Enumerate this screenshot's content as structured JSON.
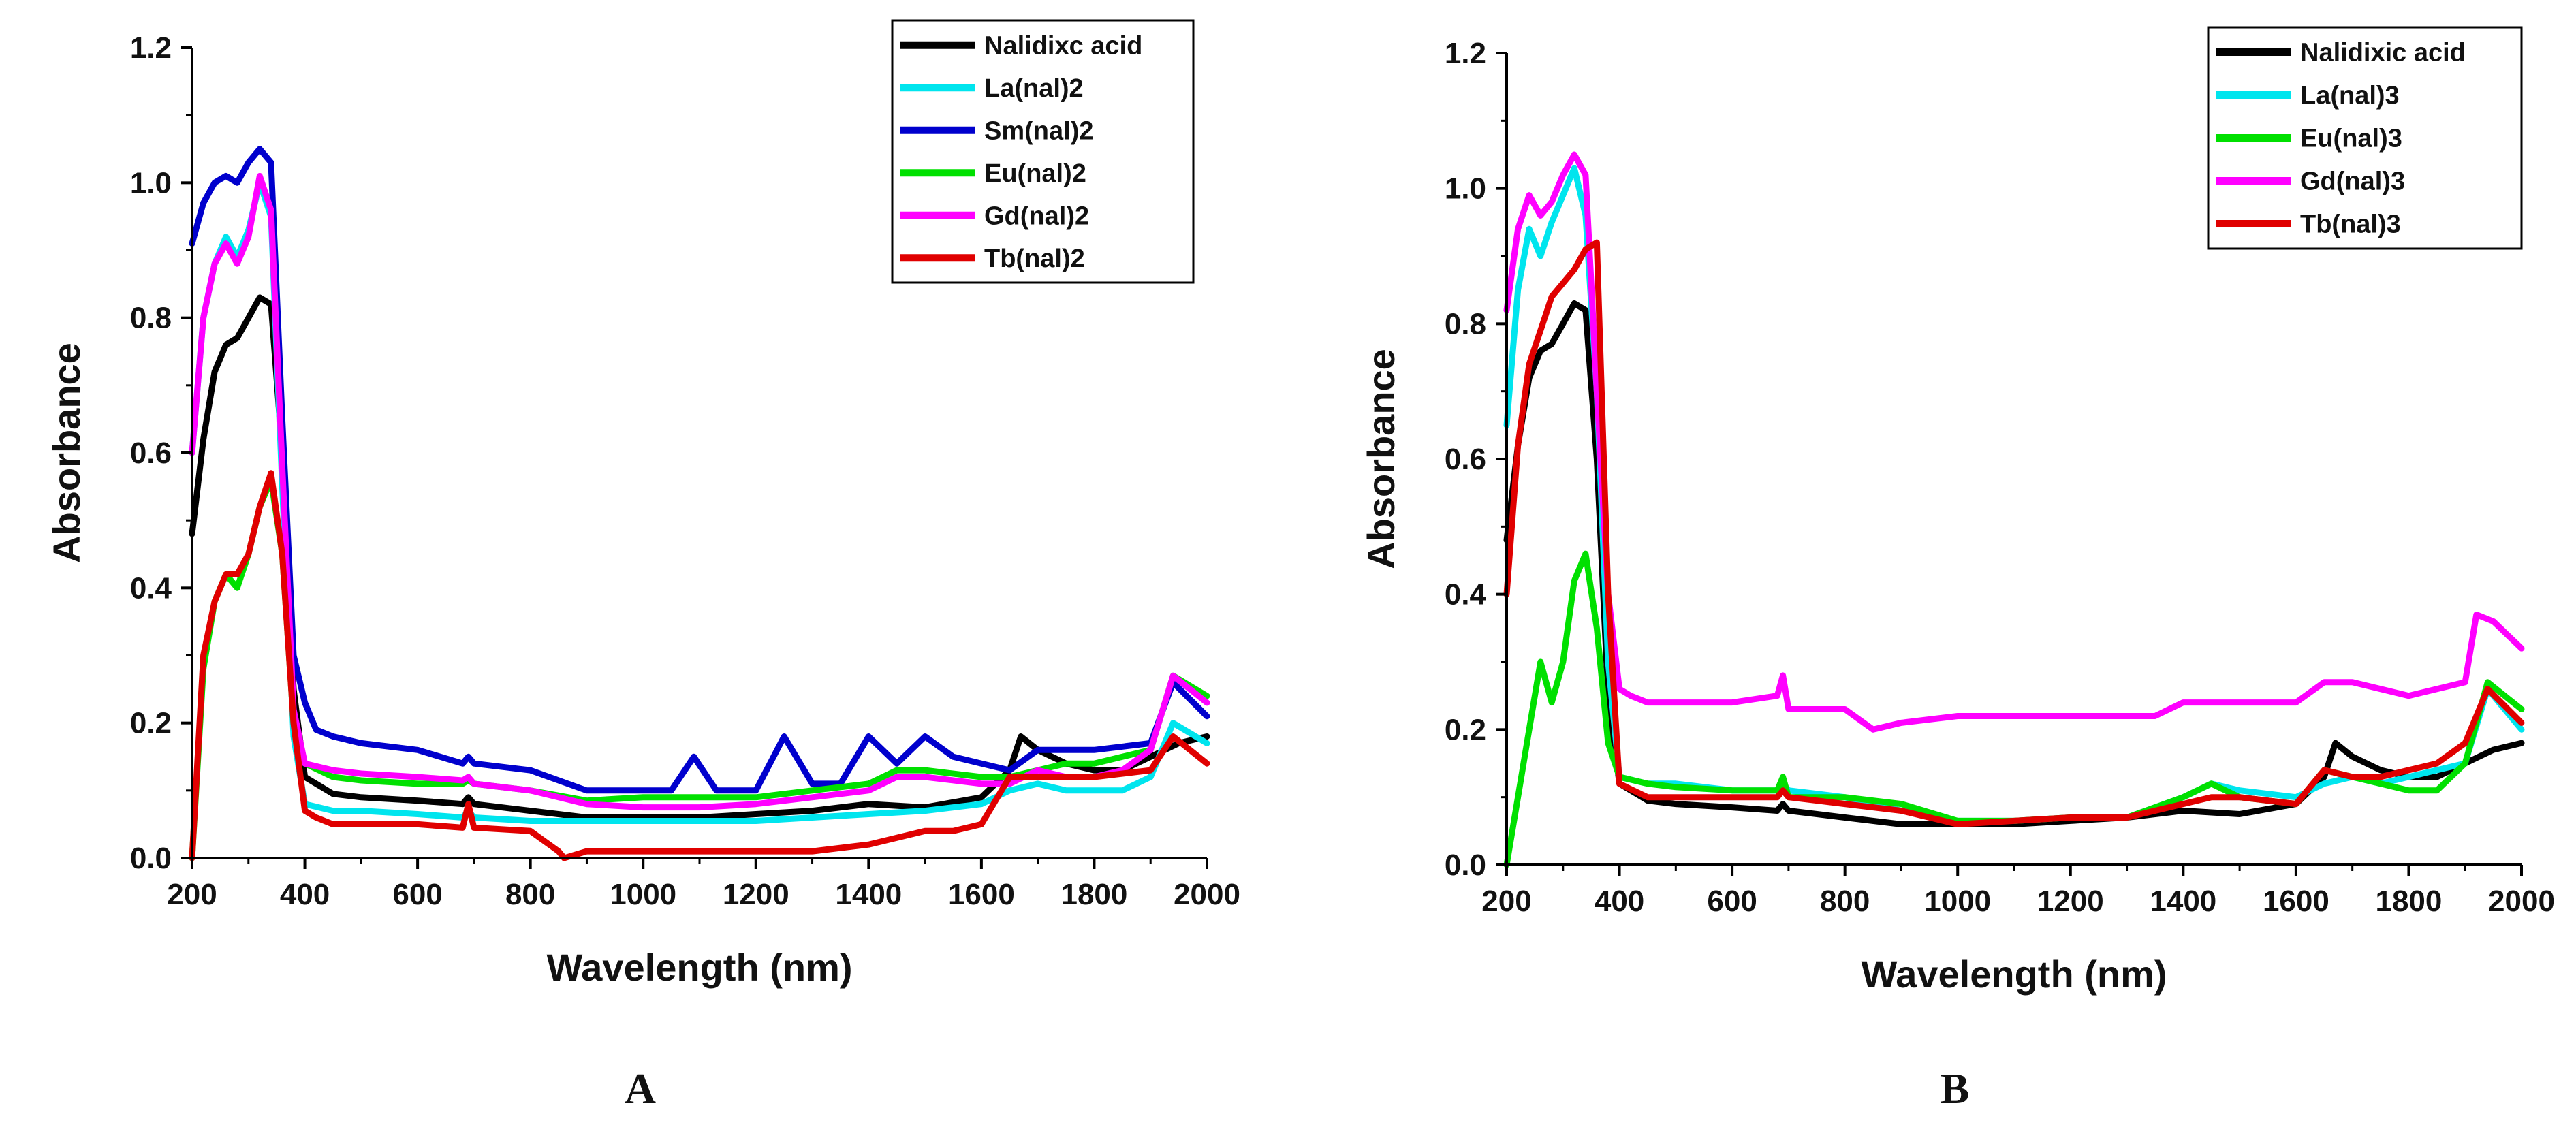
{
  "chart_data": [
    {
      "panel": "A",
      "type": "line",
      "title": "",
      "xlabel": "Wavelength (nm)",
      "ylabel": "Absorbance",
      "xlim": [
        200,
        2000
      ],
      "ylim": [
        0,
        1.2
      ],
      "xticks": [
        200,
        400,
        600,
        800,
        1000,
        1200,
        1400,
        1600,
        1800,
        2000
      ],
      "yticks": [
        0.0,
        0.2,
        0.4,
        0.6,
        0.8,
        1.0,
        1.2
      ],
      "xtick_labels": [
        "200",
        "400",
        "600",
        "800",
        "1000",
        "1200",
        "1400",
        "1600",
        "1800",
        "2000"
      ],
      "ytick_labels": [
        "0.0",
        "0.2",
        "0.4",
        "0.6",
        "0.8",
        "1.0",
        "1.2"
      ],
      "legend_position": "top-right",
      "series": [
        {
          "name": "Nalidixc acid",
          "color": "#000000",
          "x": [
            200,
            220,
            240,
            260,
            280,
            300,
            320,
            340,
            360,
            380,
            400,
            450,
            500,
            600,
            680,
            690,
            700,
            800,
            900,
            1000,
            1100,
            1200,
            1300,
            1400,
            1500,
            1600,
            1650,
            1670,
            1700,
            1750,
            1800,
            1850,
            1900,
            1950,
            2000
          ],
          "y": [
            0.48,
            0.62,
            0.72,
            0.76,
            0.77,
            0.8,
            0.83,
            0.82,
            0.6,
            0.25,
            0.12,
            0.095,
            0.09,
            0.085,
            0.08,
            0.09,
            0.08,
            0.07,
            0.06,
            0.06,
            0.06,
            0.065,
            0.07,
            0.08,
            0.075,
            0.09,
            0.13,
            0.18,
            0.16,
            0.14,
            0.13,
            0.13,
            0.15,
            0.17,
            0.18
          ]
        },
        {
          "name": "La(nal)2",
          "color": "#00e5ee",
          "x": [
            200,
            220,
            240,
            260,
            280,
            300,
            320,
            340,
            360,
            380,
            400,
            450,
            500,
            600,
            680,
            690,
            700,
            800,
            900,
            1000,
            1100,
            1200,
            1300,
            1400,
            1500,
            1600,
            1650,
            1700,
            1750,
            1800,
            1850,
            1900,
            1940,
            2000
          ],
          "y": [
            0.6,
            0.8,
            0.88,
            0.92,
            0.89,
            0.93,
            1.0,
            0.95,
            0.55,
            0.18,
            0.08,
            0.07,
            0.07,
            0.065,
            0.06,
            0.07,
            0.06,
            0.055,
            0.055,
            0.055,
            0.055,
            0.055,
            0.06,
            0.065,
            0.07,
            0.08,
            0.1,
            0.11,
            0.1,
            0.1,
            0.1,
            0.12,
            0.2,
            0.17
          ]
        },
        {
          "name": "Sm(nal)2",
          "color": "#0000cd",
          "x": [
            200,
            220,
            240,
            260,
            280,
            300,
            320,
            340,
            360,
            380,
            400,
            420,
            450,
            500,
            600,
            680,
            690,
            700,
            800,
            900,
            950,
            1000,
            1050,
            1090,
            1130,
            1200,
            1250,
            1300,
            1350,
            1400,
            1450,
            1500,
            1550,
            1600,
            1650,
            1700,
            1800,
            1900,
            1940,
            2000
          ],
          "y": [
            0.91,
            0.97,
            1.0,
            1.01,
            1.0,
            1.03,
            1.05,
            1.03,
            0.65,
            0.3,
            0.23,
            0.19,
            0.18,
            0.17,
            0.16,
            0.14,
            0.15,
            0.14,
            0.13,
            0.1,
            0.1,
            0.1,
            0.1,
            0.15,
            0.1,
            0.1,
            0.18,
            0.11,
            0.11,
            0.18,
            0.14,
            0.18,
            0.15,
            0.14,
            0.13,
            0.16,
            0.16,
            0.17,
            0.26,
            0.21
          ]
        },
        {
          "name": "Eu(nal)2",
          "color": "#00e000",
          "x": [
            200,
            220,
            240,
            260,
            280,
            300,
            320,
            340,
            360,
            380,
            400,
            450,
            500,
            600,
            680,
            690,
            700,
            800,
            900,
            1000,
            1100,
            1200,
            1300,
            1400,
            1450,
            1500,
            1600,
            1650,
            1700,
            1750,
            1800,
            1850,
            1900,
            1940,
            2000
          ],
          "y": [
            0.0,
            0.28,
            0.38,
            0.42,
            0.4,
            0.45,
            0.52,
            0.56,
            0.45,
            0.2,
            0.14,
            0.12,
            0.115,
            0.11,
            0.11,
            0.115,
            0.11,
            0.1,
            0.085,
            0.09,
            0.09,
            0.09,
            0.1,
            0.11,
            0.13,
            0.13,
            0.12,
            0.12,
            0.13,
            0.14,
            0.14,
            0.15,
            0.16,
            0.27,
            0.24
          ]
        },
        {
          "name": "Gd(nal)2",
          "color": "#ff00ff",
          "x": [
            200,
            220,
            240,
            260,
            280,
            300,
            320,
            340,
            360,
            380,
            400,
            450,
            500,
            600,
            680,
            690,
            700,
            800,
            900,
            1000,
            1100,
            1200,
            1300,
            1400,
            1450,
            1500,
            1600,
            1650,
            1700,
            1750,
            1800,
            1850,
            1900,
            1940,
            2000
          ],
          "y": [
            0.6,
            0.8,
            0.88,
            0.91,
            0.88,
            0.92,
            1.01,
            0.96,
            0.58,
            0.22,
            0.14,
            0.13,
            0.125,
            0.12,
            0.115,
            0.12,
            0.11,
            0.1,
            0.08,
            0.075,
            0.075,
            0.08,
            0.09,
            0.1,
            0.12,
            0.12,
            0.11,
            0.11,
            0.13,
            0.12,
            0.12,
            0.13,
            0.16,
            0.27,
            0.23
          ]
        },
        {
          "name": "Tb(nal)2",
          "color": "#e00000",
          "x": [
            200,
            220,
            240,
            260,
            280,
            300,
            320,
            340,
            360,
            380,
            400,
            420,
            450,
            500,
            600,
            680,
            690,
            700,
            800,
            850,
            860,
            900,
            1000,
            1100,
            1200,
            1300,
            1400,
            1450,
            1500,
            1550,
            1600,
            1650,
            1700,
            1800,
            1900,
            1940,
            2000
          ],
          "y": [
            0.0,
            0.3,
            0.38,
            0.42,
            0.42,
            0.45,
            0.52,
            0.57,
            0.45,
            0.2,
            0.07,
            0.06,
            0.05,
            0.05,
            0.05,
            0.045,
            0.08,
            0.045,
            0.04,
            0.01,
            0.0,
            0.01,
            0.01,
            0.01,
            0.01,
            0.01,
            0.02,
            0.03,
            0.04,
            0.04,
            0.05,
            0.12,
            0.12,
            0.12,
            0.13,
            0.18,
            0.14
          ]
        }
      ]
    },
    {
      "panel": "B",
      "type": "line",
      "title": "",
      "xlabel": "Wavelength (nm)",
      "ylabel": "Absorbance",
      "xlim": [
        200,
        2000
      ],
      "ylim": [
        0,
        1.2
      ],
      "xticks": [
        200,
        400,
        600,
        800,
        1000,
        1200,
        1400,
        1600,
        1800,
        2000
      ],
      "yticks": [
        0.0,
        0.2,
        0.4,
        0.6,
        0.8,
        1.0,
        1.2
      ],
      "xtick_labels": [
        "200",
        "400",
        "600",
        "800",
        "1000",
        "1200",
        "1400",
        "1600",
        "1800",
        "2000"
      ],
      "ytick_labels": [
        "0.0",
        "0.2",
        "0.4",
        "0.6",
        "0.8",
        "1.0",
        "1.2"
      ],
      "legend_position": "top-right",
      "series": [
        {
          "name": "Nalidixic acid",
          "color": "#000000",
          "x": [
            200,
            220,
            240,
            260,
            280,
            300,
            320,
            340,
            360,
            380,
            400,
            450,
            500,
            600,
            680,
            690,
            700,
            800,
            900,
            1000,
            1100,
            1200,
            1300,
            1400,
            1500,
            1600,
            1650,
            1670,
            1700,
            1750,
            1800,
            1850,
            1900,
            1950,
            2000
          ],
          "y": [
            0.48,
            0.62,
            0.72,
            0.76,
            0.77,
            0.8,
            0.83,
            0.82,
            0.6,
            0.25,
            0.12,
            0.095,
            0.09,
            0.085,
            0.08,
            0.09,
            0.08,
            0.07,
            0.06,
            0.06,
            0.06,
            0.065,
            0.07,
            0.08,
            0.075,
            0.09,
            0.13,
            0.18,
            0.16,
            0.14,
            0.13,
            0.13,
            0.15,
            0.17,
            0.18
          ]
        },
        {
          "name": "La(nal)3",
          "color": "#00e5ee",
          "x": [
            200,
            220,
            240,
            260,
            280,
            300,
            320,
            340,
            360,
            380,
            400,
            450,
            500,
            600,
            680,
            690,
            700,
            800,
            900,
            1000,
            1100,
            1200,
            1300,
            1400,
            1450,
            1500,
            1600,
            1650,
            1700,
            1750,
            1800,
            1850,
            1900,
            1940,
            2000
          ],
          "y": [
            0.65,
            0.85,
            0.94,
            0.9,
            0.95,
            0.99,
            1.03,
            0.96,
            0.7,
            0.3,
            0.13,
            0.12,
            0.12,
            0.11,
            0.11,
            0.12,
            0.11,
            0.1,
            0.08,
            0.065,
            0.065,
            0.07,
            0.07,
            0.1,
            0.12,
            0.11,
            0.1,
            0.12,
            0.13,
            0.12,
            0.13,
            0.14,
            0.15,
            0.26,
            0.2
          ]
        },
        {
          "name": "Eu(nal)3",
          "color": "#00e000",
          "x": [
            200,
            220,
            240,
            260,
            280,
            300,
            320,
            340,
            360,
            380,
            400,
            450,
            500,
            600,
            680,
            690,
            700,
            800,
            900,
            1000,
            1100,
            1200,
            1300,
            1400,
            1450,
            1500,
            1600,
            1650,
            1700,
            1750,
            1800,
            1850,
            1900,
            1940,
            2000
          ],
          "y": [
            0.0,
            0.1,
            0.2,
            0.3,
            0.24,
            0.3,
            0.42,
            0.46,
            0.35,
            0.18,
            0.13,
            0.12,
            0.115,
            0.11,
            0.11,
            0.13,
            0.1,
            0.1,
            0.09,
            0.065,
            0.065,
            0.07,
            0.07,
            0.1,
            0.12,
            0.1,
            0.09,
            0.14,
            0.13,
            0.12,
            0.11,
            0.11,
            0.15,
            0.27,
            0.23
          ]
        },
        {
          "name": "Gd(nal)3",
          "color": "#ff00ff",
          "x": [
            200,
            220,
            240,
            260,
            280,
            300,
            320,
            340,
            360,
            380,
            400,
            420,
            450,
            500,
            600,
            680,
            690,
            700,
            800,
            850,
            900,
            1000,
            1100,
            1200,
            1300,
            1350,
            1400,
            1450,
            1500,
            1600,
            1650,
            1700,
            1800,
            1850,
            1900,
            1920,
            1950,
            2000
          ],
          "y": [
            0.82,
            0.94,
            0.99,
            0.96,
            0.98,
            1.02,
            1.05,
            1.02,
            0.7,
            0.4,
            0.26,
            0.25,
            0.24,
            0.24,
            0.24,
            0.25,
            0.28,
            0.23,
            0.23,
            0.2,
            0.21,
            0.22,
            0.22,
            0.22,
            0.22,
            0.22,
            0.24,
            0.24,
            0.24,
            0.24,
            0.27,
            0.27,
            0.25,
            0.26,
            0.27,
            0.37,
            0.36,
            0.32
          ]
        },
        {
          "name": "Tb(nal)3",
          "color": "#e00000",
          "x": [
            200,
            220,
            240,
            260,
            280,
            300,
            320,
            340,
            360,
            380,
            400,
            450,
            500,
            600,
            680,
            690,
            700,
            800,
            900,
            1000,
            1100,
            1200,
            1300,
            1400,
            1450,
            1500,
            1600,
            1650,
            1700,
            1750,
            1800,
            1850,
            1900,
            1940,
            2000
          ],
          "y": [
            0.4,
            0.62,
            0.74,
            0.79,
            0.84,
            0.86,
            0.88,
            0.91,
            0.92,
            0.4,
            0.12,
            0.1,
            0.1,
            0.1,
            0.1,
            0.11,
            0.1,
            0.09,
            0.08,
            0.06,
            0.065,
            0.07,
            0.07,
            0.09,
            0.1,
            0.1,
            0.09,
            0.14,
            0.13,
            0.13,
            0.14,
            0.15,
            0.18,
            0.26,
            0.21
          ]
        }
      ]
    }
  ],
  "panel_labels": [
    "A",
    "B"
  ]
}
